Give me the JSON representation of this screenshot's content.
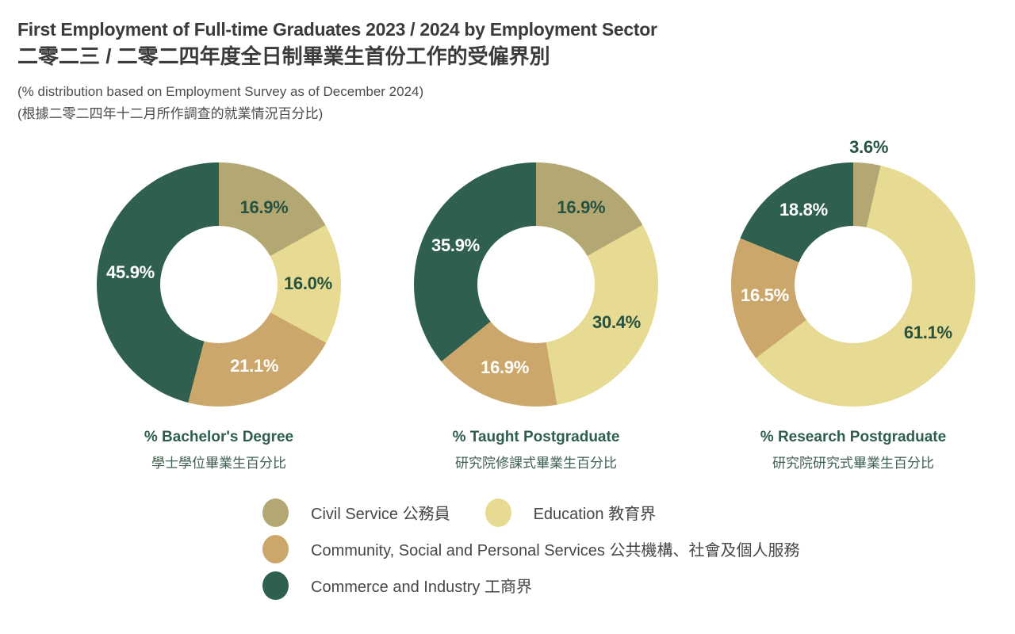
{
  "header": {
    "title_en": "First Employment of Full-time Graduates 2023 / 2024 by Employment Sector",
    "title_zh": "二零二三 / 二零二四年度全日制畢業生首份工作的受僱界別",
    "subtitle_en": "(% distribution based on Employment Survey as of December 2024)",
    "subtitle_zh": "(根據二零二四年十二月所作調查的就業情況百分比)"
  },
  "colors": {
    "civil_service": "#b3a873",
    "education": "#e7da93",
    "community": "#cba76b",
    "commerce": "#2f5f4e",
    "slice_label_green": "#26523f",
    "slice_label_white": "#ffffff",
    "chart_title_green": "#2e5d4b",
    "header_text": "#3b3b3b",
    "legend_text": "#474747"
  },
  "legend": {
    "items": [
      {
        "label": "Civil Service 公務員"
      },
      {
        "label": "Education 教育界"
      },
      {
        "label": "Community, Social and Personal Services 公共機構、社會及個人服務"
      },
      {
        "label": "Commerce and Industry 工商界"
      }
    ]
  },
  "chart_data": {
    "type": "pie",
    "variant": "donut",
    "unit": "%",
    "start_angle_deg": 0,
    "direction": "clockwise",
    "small_label_outside_below_pct": 8,
    "sectors": [
      {
        "name": "Civil Service 公務員",
        "color": "#b3a873",
        "label_color": "#26523f"
      },
      {
        "name": "Education 教育界",
        "color": "#e7da93",
        "label_color": "#26523f"
      },
      {
        "name": "Community, Social and Personal Services 公共機構、社會及個人服務",
        "color": "#cba76b",
        "label_color": "#ffffff"
      },
      {
        "name": "Commerce and Industry 工商界",
        "color": "#2f5f4e",
        "label_color": "#ffffff"
      }
    ],
    "charts": [
      {
        "title_en": "% Bachelor's Degree",
        "title_zh": "學士學位畢業生百分比",
        "values": [
          16.9,
          16.0,
          21.1,
          45.9
        ]
      },
      {
        "title_en": "% Taught Postgraduate",
        "title_zh": "研究院修課式畢業生百分比",
        "values": [
          16.9,
          30.4,
          16.9,
          35.9
        ]
      },
      {
        "title_en": "% Research Postgraduate",
        "title_zh": "研究院研究式畢業生百分比",
        "values": [
          3.6,
          61.1,
          16.5,
          18.8
        ]
      }
    ]
  }
}
